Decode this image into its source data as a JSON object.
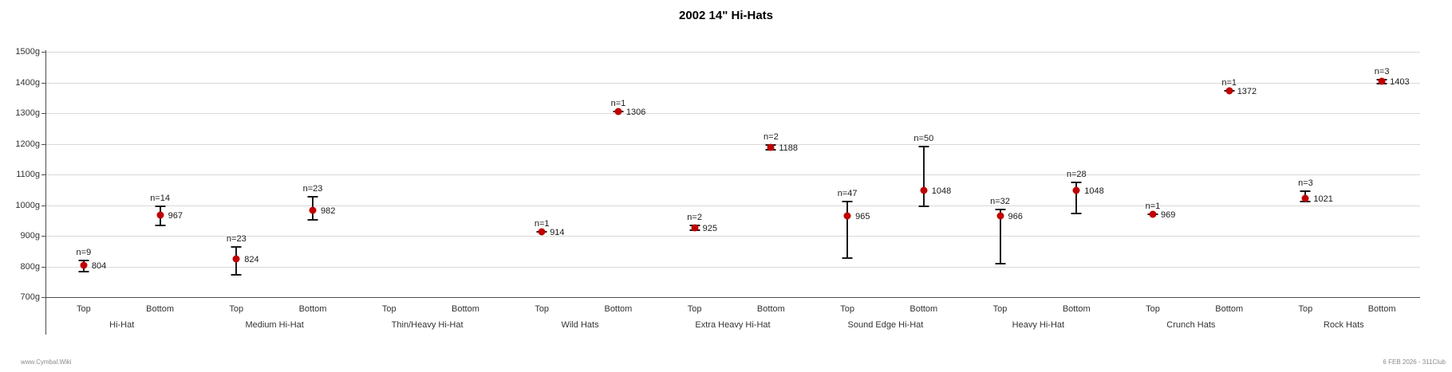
{
  "title": "2002 14\" Hi-Hats",
  "footer": {
    "left": "www.Cymbal.Wiki",
    "right": "6 FEB 2026 - 311Club"
  },
  "chart_data": {
    "type": "scatter",
    "title": "2002 14\" Hi-Hats",
    "xlabel": "",
    "ylabel": "",
    "ylim": [
      700,
      1500
    ],
    "ytick_step": 100,
    "ytick_suffix": "g",
    "grid": true,
    "legend": "none",
    "marker_color": "#c00000",
    "error_bar_color": "#1a1a1a",
    "sub_categories": [
      "Top",
      "Bottom"
    ],
    "groups": [
      "Hi-Hat",
      "Medium Hi-Hat",
      "Thin/Heavy Hi-Hat",
      "Wild Hats",
      "Extra Heavy Hi-Hat",
      "Sound Edge Hi-Hat",
      "Heavy Hi-Hat",
      "Crunch Hats",
      "Rock Hats"
    ],
    "points": [
      {
        "group": "Hi-Hat",
        "position": "Top",
        "n": 9,
        "n_label": "n=9",
        "mean": 804,
        "value_label": "804",
        "whisker_low": 782,
        "whisker_high": 820
      },
      {
        "group": "Hi-Hat",
        "position": "Bottom",
        "n": 14,
        "n_label": "n=14",
        "mean": 967,
        "value_label": "967",
        "whisker_low": 934,
        "whisker_high": 996
      },
      {
        "group": "Medium Hi-Hat",
        "position": "Top",
        "n": 23,
        "n_label": "n=23",
        "mean": 824,
        "value_label": "824",
        "whisker_low": 772,
        "whisker_high": 863
      },
      {
        "group": "Medium Hi-Hat",
        "position": "Bottom",
        "n": 23,
        "n_label": "n=23",
        "mean": 982,
        "value_label": "982",
        "whisker_low": 951,
        "whisker_high": 1026
      },
      {
        "group": "Wild Hats",
        "position": "Top",
        "n": 1,
        "n_label": "n=1",
        "mean": 914,
        "value_label": "914",
        "whisker_low": 914,
        "whisker_high": 914
      },
      {
        "group": "Wild Hats",
        "position": "Bottom",
        "n": 1,
        "n_label": "n=1",
        "mean": 1306,
        "value_label": "1306",
        "whisker_low": 1306,
        "whisker_high": 1306
      },
      {
        "group": "Extra Heavy Hi-Hat",
        "position": "Top",
        "n": 2,
        "n_label": "n=2",
        "mean": 925,
        "value_label": "925",
        "whisker_low": 917,
        "whisker_high": 933
      },
      {
        "group": "Extra Heavy Hi-Hat",
        "position": "Bottom",
        "n": 2,
        "n_label": "n=2",
        "mean": 1188,
        "value_label": "1188",
        "whisker_low": 1181,
        "whisker_high": 1196
      },
      {
        "group": "Sound Edge Hi-Hat",
        "position": "Top",
        "n": 47,
        "n_label": "n=47",
        "mean": 965,
        "value_label": "965",
        "whisker_low": 828,
        "whisker_high": 1012
      },
      {
        "group": "Sound Edge Hi-Hat",
        "position": "Bottom",
        "n": 50,
        "n_label": "n=50",
        "mean": 1048,
        "value_label": "1048",
        "whisker_low": 997,
        "whisker_high": 1190
      },
      {
        "group": "Heavy Hi-Hat",
        "position": "Top",
        "n": 32,
        "n_label": "n=32",
        "mean": 966,
        "value_label": "966",
        "whisker_low": 809,
        "whisker_high": 985
      },
      {
        "group": "Heavy Hi-Hat",
        "position": "Bottom",
        "n": 28,
        "n_label": "n=28",
        "mean": 1048,
        "value_label": "1048",
        "whisker_low": 973,
        "whisker_high": 1075
      },
      {
        "group": "Crunch Hats",
        "position": "Top",
        "n": 1,
        "n_label": "n=1",
        "mean": 969,
        "value_label": "969",
        "whisker_low": 969,
        "whisker_high": 969
      },
      {
        "group": "Crunch Hats",
        "position": "Bottom",
        "n": 1,
        "n_label": "n=1",
        "mean": 1372,
        "value_label": "1372",
        "whisker_low": 1372,
        "whisker_high": 1372
      },
      {
        "group": "Rock Hats",
        "position": "Top",
        "n": 3,
        "n_label": "n=3",
        "mean": 1021,
        "value_label": "1021",
        "whisker_low": 1012,
        "whisker_high": 1046
      },
      {
        "group": "Rock Hats",
        "position": "Bottom",
        "n": 3,
        "n_label": "n=3",
        "mean": 1403,
        "value_label": "1403",
        "whisker_low": 1396,
        "whisker_high": 1410
      }
    ]
  }
}
